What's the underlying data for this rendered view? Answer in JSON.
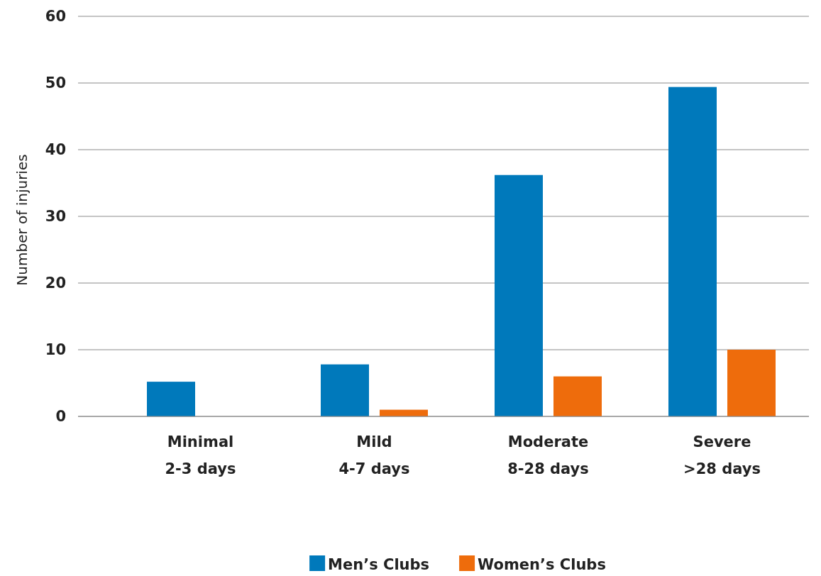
{
  "chart_data": {
    "type": "bar",
    "ylabel": "Number of injuries",
    "categories": [
      "Minimal\n2-3 days",
      "Mild\n4-7 days",
      "Moderate\n8-28 days",
      "Severe\n>28 days"
    ],
    "series": [
      {
        "name": "Men’s Clubs",
        "color": "#0079bb",
        "values": [
          5.2,
          7.8,
          36.2,
          49.4
        ]
      },
      {
        "name": "Women’s Clubs",
        "color": "#ee6c0c",
        "values": [
          0,
          1,
          6,
          10
        ]
      }
    ],
    "ylim": [
      0,
      60
    ],
    "yticks": [
      0,
      10,
      20,
      30,
      40,
      50,
      60
    ],
    "grid": "y",
    "legend": "bottom"
  }
}
